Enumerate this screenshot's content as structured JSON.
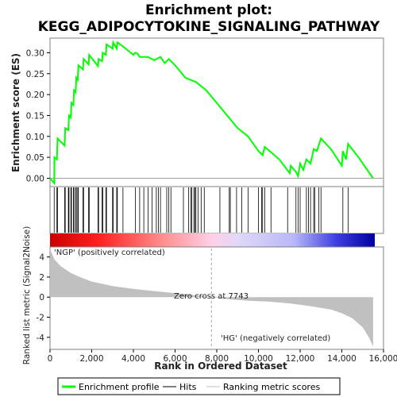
{
  "chart_data": {
    "type": "line",
    "title_line1": "Enrichment plot:",
    "title_line2": "KEGG_ADIPOCYTOKINE_SIGNALING_PATHWAY",
    "ylabel_top": "Enrichment score (ES)",
    "ylabel_bottom": "Ranked list metric (Signal2Noise)",
    "xlabel": "Rank in Ordered Dataset",
    "xlim": [
      0,
      16000
    ],
    "xticks": [
      0,
      2000,
      4000,
      6000,
      8000,
      10000,
      12000,
      14000,
      16000
    ],
    "xtick_labels": [
      "0",
      "2,000",
      "4,000",
      "6,000",
      "8,000",
      "10,000",
      "12,000",
      "14,000",
      "16,000"
    ],
    "es_ylim": [
      -0.02,
      0.335
    ],
    "es_yticks": [
      0.0,
      0.05,
      0.1,
      0.15,
      0.2,
      0.25,
      0.3
    ],
    "es_ytick_labels": [
      "0.00",
      "0.05",
      "0.10",
      "0.15",
      "0.20",
      "0.25",
      "0.30"
    ],
    "metric_ylim": [
      -5.2,
      5.0
    ],
    "metric_yticks": [
      -4,
      -2,
      0,
      2,
      4
    ],
    "metric_ytick_labels": [
      "-4",
      "-2",
      "0",
      "2",
      "4"
    ],
    "total_rank": 15500,
    "enrichment_profile": {
      "name": "Enrichment profile",
      "color": "#00ff00",
      "points": [
        [
          0,
          0.0
        ],
        [
          200,
          -0.012
        ],
        [
          210,
          0.05
        ],
        [
          330,
          0.045
        ],
        [
          360,
          0.095
        ],
        [
          700,
          0.078
        ],
        [
          730,
          0.12
        ],
        [
          880,
          0.115
        ],
        [
          910,
          0.15
        ],
        [
          1000,
          0.145
        ],
        [
          1030,
          0.18
        ],
        [
          1120,
          0.175
        ],
        [
          1150,
          0.21
        ],
        [
          1230,
          0.205
        ],
        [
          1260,
          0.24
        ],
        [
          1330,
          0.235
        ],
        [
          1360,
          0.27
        ],
        [
          1580,
          0.26
        ],
        [
          1610,
          0.285
        ],
        [
          1850,
          0.272
        ],
        [
          1880,
          0.295
        ],
        [
          2300,
          0.268
        ],
        [
          2330,
          0.285
        ],
        [
          2500,
          0.28
        ],
        [
          2530,
          0.3
        ],
        [
          2680,
          0.295
        ],
        [
          2710,
          0.32
        ],
        [
          3000,
          0.31
        ],
        [
          3030,
          0.325
        ],
        [
          3200,
          0.31
        ],
        [
          3230,
          0.325
        ],
        [
          3500,
          0.315
        ],
        [
          4000,
          0.295
        ],
        [
          4100,
          0.3
        ],
        [
          4200,
          0.298
        ],
        [
          4300,
          0.29
        ],
        [
          4700,
          0.29
        ],
        [
          5000,
          0.282
        ],
        [
          5300,
          0.29
        ],
        [
          5500,
          0.275
        ],
        [
          5700,
          0.285
        ],
        [
          6000,
          0.27
        ],
        [
          6500,
          0.24
        ],
        [
          7000,
          0.23
        ],
        [
          7500,
          0.21
        ],
        [
          8000,
          0.18
        ],
        [
          8500,
          0.15
        ],
        [
          9000,
          0.12
        ],
        [
          9500,
          0.1
        ],
        [
          10000,
          0.065
        ],
        [
          10200,
          0.055
        ],
        [
          10300,
          0.075
        ],
        [
          10600,
          0.062
        ],
        [
          11000,
          0.045
        ],
        [
          11500,
          0.012
        ],
        [
          11550,
          0.03
        ],
        [
          11800,
          0.015
        ],
        [
          11900,
          0.005
        ],
        [
          12000,
          0.035
        ],
        [
          12150,
          0.02
        ],
        [
          12300,
          0.045
        ],
        [
          12500,
          0.035
        ],
        [
          12650,
          0.07
        ],
        [
          12800,
          0.065
        ],
        [
          13000,
          0.095
        ],
        [
          13500,
          0.068
        ],
        [
          14000,
          0.03
        ],
        [
          14050,
          0.065
        ],
        [
          14200,
          0.045
        ],
        [
          14300,
          0.082
        ],
        [
          14800,
          0.05
        ],
        [
          15500,
          0.0
        ]
      ]
    },
    "hits": {
      "name": "Hits",
      "color": "#000000",
      "ranks": [
        200,
        330,
        360,
        700,
        730,
        880,
        910,
        1000,
        1030,
        1120,
        1150,
        1230,
        1260,
        1330,
        1360,
        1580,
        1610,
        1850,
        1880,
        2300,
        2330,
        2500,
        2530,
        2680,
        2710,
        3000,
        3030,
        3200,
        3230,
        3500,
        4100,
        4300,
        4500,
        4700,
        4900,
        5100,
        5200,
        5300,
        5600,
        5700,
        5800,
        6400,
        6650,
        6750,
        6800,
        6900,
        6950,
        7000,
        7100,
        7250,
        7400,
        8150,
        8600,
        8650,
        8950,
        9200,
        9500,
        10000,
        10150,
        10200,
        10300,
        10600,
        11400,
        11800,
        11900,
        12000,
        12300,
        12400,
        12500,
        12650,
        12700,
        12900,
        13000,
        14050,
        14300
      ]
    },
    "ranking_metric": {
      "name": "Ranking metric scores",
      "color": "#c0c0c0",
      "points": [
        [
          0,
          4.8
        ],
        [
          200,
          3.8
        ],
        [
          500,
          3.1
        ],
        [
          1000,
          2.4
        ],
        [
          1500,
          1.95
        ],
        [
          2000,
          1.55
        ],
        [
          3000,
          1.1
        ],
        [
          4000,
          0.82
        ],
        [
          5000,
          0.6
        ],
        [
          6000,
          0.4
        ],
        [
          7000,
          0.18
        ],
        [
          7743,
          0.0
        ],
        [
          8500,
          -0.2
        ],
        [
          9500,
          -0.35
        ],
        [
          10500,
          -0.45
        ],
        [
          11500,
          -0.62
        ],
        [
          12500,
          -0.9
        ],
        [
          13500,
          -1.25
        ],
        [
          14000,
          -1.6
        ],
        [
          14500,
          -2.1
        ],
        [
          15000,
          -3.0
        ],
        [
          15300,
          -4.0
        ],
        [
          15500,
          -4.9
        ]
      ]
    },
    "zero_cross_label": "Zero cross at 7743",
    "zero_cross_rank": 7743,
    "pos_label": "'NGP' (positively correlated)",
    "neg_label": "'HG' (negatively correlated)",
    "colors": {
      "pos_label": "#ff0000",
      "neg_label": "#0000cc",
      "frame": "#808080"
    },
    "legend": [
      "Enrichment profile",
      "Hits",
      "Ranking metric scores"
    ],
    "legend_placement": "bottom"
  }
}
